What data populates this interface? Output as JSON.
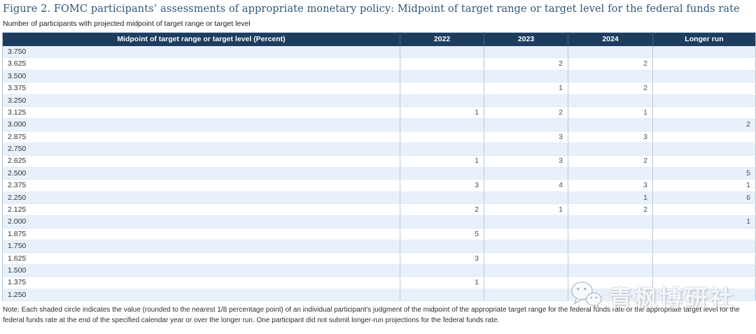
{
  "figure": {
    "title": "Figure 2. FOMC participants’ assessments of appropriate monetary policy: Midpoint of target range or target level for the federal funds rate",
    "subtitle": "Number of participants with projected midpoint of target range or target level",
    "note": "Note: Each shaded circle indicates the value (rounded to the nearest 1/8 percentage point) of an individual participant's judgment of the midpoint of the appropriate target range for the federal funds rate or the appropriate target level for the federal funds rate at the end of the specified calendar year or over the longer run. One participant did not submit longer-run projections for the federal funds rate."
  },
  "chart_data": {
    "type": "table",
    "title": "Figure 2. FOMC participants’ assessments of appropriate monetary policy: Midpoint of target range or target level for the federal funds rate",
    "subtitle": "Number of participants with projected midpoint of target range or target level",
    "columns": [
      "Midpoint of target range or target level (Percent)",
      "2022",
      "2023",
      "2024",
      "Longer run"
    ],
    "rows": [
      [
        "3.750",
        "",
        "",
        "",
        ""
      ],
      [
        "3.625",
        "",
        "2",
        "2",
        ""
      ],
      [
        "3.500",
        "",
        "",
        "",
        ""
      ],
      [
        "3.375",
        "",
        "1",
        "2",
        ""
      ],
      [
        "3.250",
        "",
        "",
        "",
        ""
      ],
      [
        "3.125",
        "1",
        "2",
        "1",
        ""
      ],
      [
        "3.000",
        "",
        "",
        "",
        "2"
      ],
      [
        "2.875",
        "",
        "3",
        "3",
        ""
      ],
      [
        "2.750",
        "",
        "",
        "",
        ""
      ],
      [
        "2.625",
        "1",
        "3",
        "2",
        ""
      ],
      [
        "2.500",
        "",
        "",
        "",
        "5"
      ],
      [
        "2.375",
        "3",
        "4",
        "3",
        "1"
      ],
      [
        "2.250",
        "",
        "",
        "1",
        "6"
      ],
      [
        "2.125",
        "2",
        "1",
        "2",
        ""
      ],
      [
        "2.000",
        "",
        "",
        "",
        "1"
      ],
      [
        "1.875",
        "5",
        "",
        "",
        ""
      ],
      [
        "1.750",
        "",
        "",
        "",
        ""
      ],
      [
        "1.625",
        "3",
        "",
        "",
        ""
      ],
      [
        "1.500",
        "",
        "",
        "",
        ""
      ],
      [
        "1.375",
        "1",
        "",
        "",
        ""
      ],
      [
        "1.250",
        "",
        "",
        "",
        ""
      ]
    ],
    "layout": {
      "first_row_shaded": true,
      "alternating_row_shading": true,
      "value_alignment": "right"
    }
  },
  "watermark": {
    "text": "青枫博研社",
    "icon": "wechat-icon"
  },
  "colors": {
    "title_text": "#2e567a",
    "header_bg": "#1e3c5e",
    "header_text": "#ffffff",
    "shaded_row_bg": "#e8f1f9",
    "table_border": "#b3c8da",
    "cell_text": "#4d4d4d"
  }
}
